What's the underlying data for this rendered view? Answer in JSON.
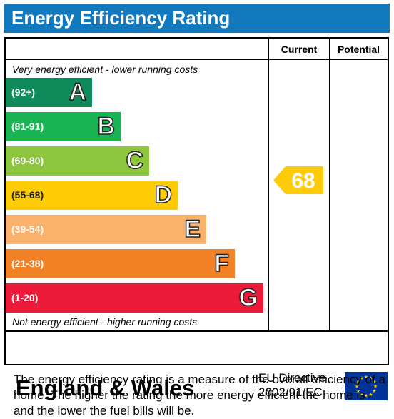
{
  "title": "Energy Efficiency Rating",
  "columns": {
    "current": "Current",
    "potential": "Potential"
  },
  "notes": {
    "top": "Very energy efficient - lower running costs",
    "bottom": "Not energy efficient - higher running costs"
  },
  "bands": [
    {
      "range": "(92+)",
      "letter": "A",
      "color": "#0f8a5a"
    },
    {
      "range": "(81-91)",
      "letter": "B",
      "color": "#1bb455"
    },
    {
      "range": "(69-80)",
      "letter": "C",
      "color": "#8cc63e"
    },
    {
      "range": "(55-68)",
      "letter": "D",
      "color": "#fdcc07"
    },
    {
      "range": "(39-54)",
      "letter": "E",
      "color": "#f9b16c"
    },
    {
      "range": "(21-38)",
      "letter": "F",
      "color": "#f38125"
    },
    {
      "range": "(1-20)",
      "letter": "G",
      "color": "#ed1b3a"
    }
  ],
  "current_rating": {
    "value": "68",
    "band": "D",
    "color": "#fdcc07"
  },
  "footer": {
    "region": "England & Wales",
    "directive_line1": "EU Directive",
    "directive_line2": "2002/91/EC"
  },
  "description": "The energy efficiency rating is a measure of the overall efficiency of a home.  The higher the rating the more energy efficient the home is and the lower the fuel bills will be."
}
